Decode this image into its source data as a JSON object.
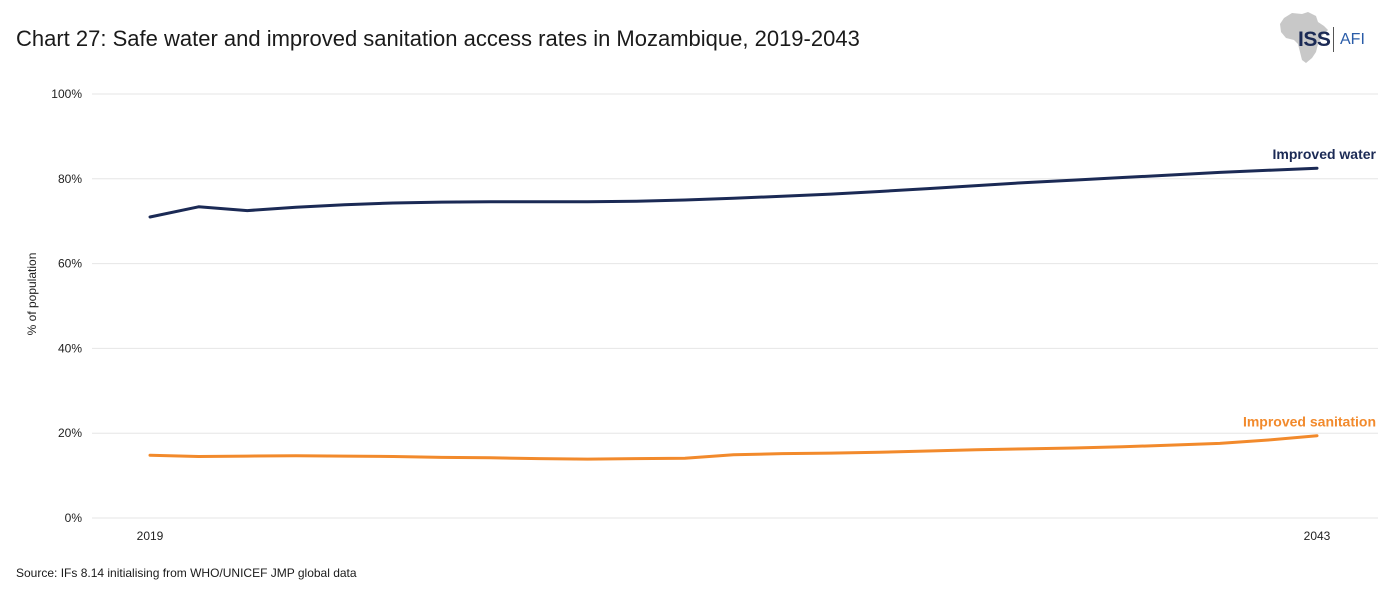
{
  "title": "Chart 27: Safe water and improved sanitation access rates in Mozambique, 2019-2043",
  "logo": {
    "primary": "ISS",
    "secondary": "AFI"
  },
  "source": "Source: IFs 8.14 initialising from WHO/UNICEF JMP global data",
  "colors": {
    "water": "#1b2a55",
    "sanitation": "#f28a2c",
    "grid": "#e6e6e6",
    "logo_map": "#c8c8c8"
  },
  "chart_data": {
    "type": "line",
    "title": "Chart 27: Safe water and improved sanitation access rates in Mozambique, 2019-2043",
    "xlabel": "",
    "ylabel": "% of population",
    "xlim": [
      2019,
      2043
    ],
    "ylim": [
      0,
      100
    ],
    "x_tick_labels": [
      "2019",
      "2043"
    ],
    "y_tick_labels": [
      "0%",
      "20%",
      "40%",
      "60%",
      "80%",
      "100%"
    ],
    "y_ticks": [
      0,
      20,
      40,
      60,
      80,
      100
    ],
    "x": [
      2019,
      2020,
      2021,
      2022,
      2023,
      2024,
      2025,
      2026,
      2027,
      2028,
      2029,
      2030,
      2031,
      2032,
      2033,
      2034,
      2035,
      2036,
      2037,
      2038,
      2039,
      2040,
      2041,
      2042,
      2043
    ],
    "series": [
      {
        "name": "Improved water",
        "color_key": "water",
        "values": [
          71.0,
          73.4,
          72.5,
          73.3,
          73.9,
          74.3,
          74.5,
          74.6,
          74.6,
          74.6,
          74.7,
          75.0,
          75.4,
          75.9,
          76.4,
          77.0,
          77.7,
          78.4,
          79.1,
          79.7,
          80.3,
          80.9,
          81.5,
          82.0,
          82.5
        ]
      },
      {
        "name": "Improved sanitation",
        "color_key": "sanitation",
        "values": [
          14.8,
          14.5,
          14.6,
          14.7,
          14.6,
          14.5,
          14.3,
          14.2,
          14.0,
          13.9,
          14.0,
          14.1,
          14.9,
          15.2,
          15.3,
          15.5,
          15.8,
          16.1,
          16.3,
          16.5,
          16.8,
          17.2,
          17.6,
          18.4,
          19.4
        ]
      }
    ]
  }
}
